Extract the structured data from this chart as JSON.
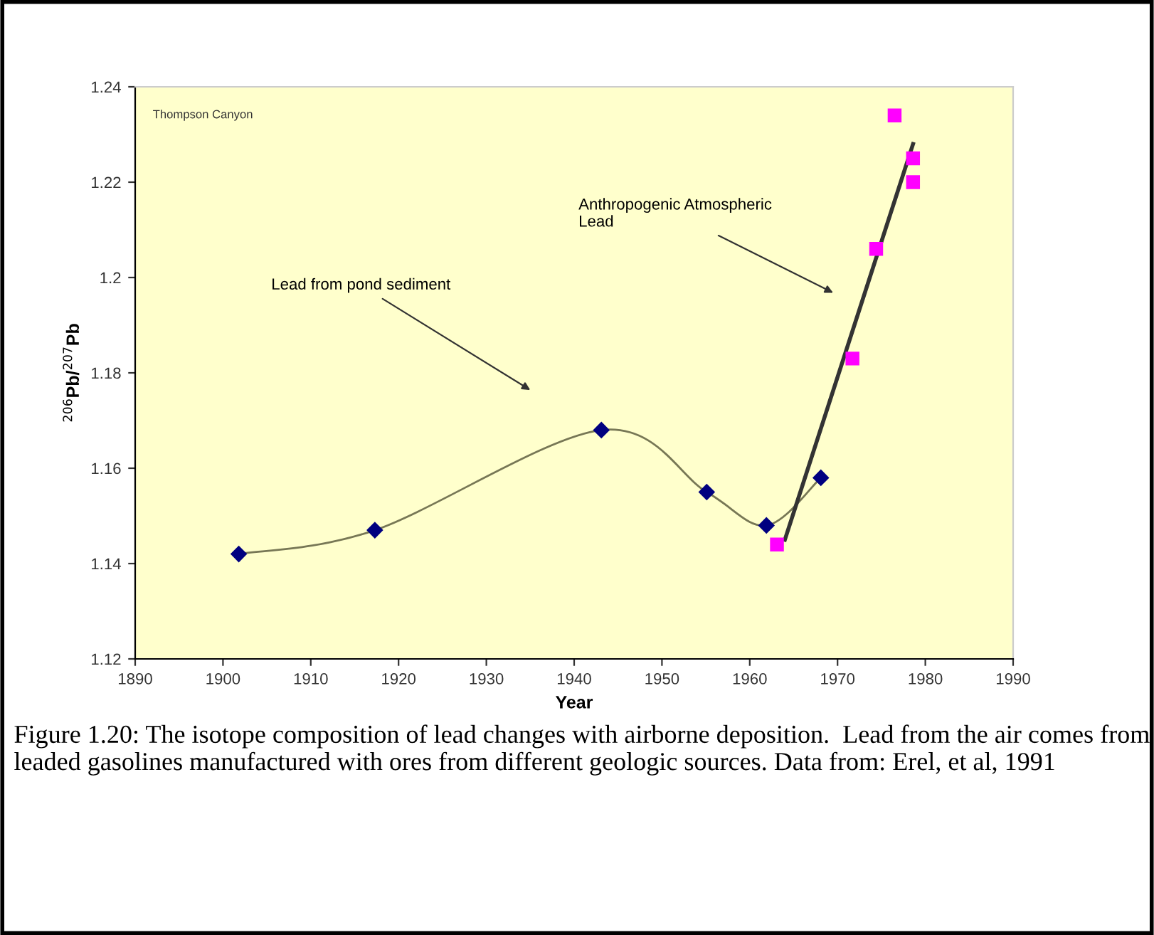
{
  "chart_data": {
    "type": "scatter",
    "xlabel": "Year",
    "ylabel": "$^{206}$Pb/$^{207}$Pb",
    "xlim": [
      1890,
      1990
    ],
    "xticks": [
      1890,
      1900,
      1910,
      1920,
      1930,
      1940,
      1950,
      1960,
      1970,
      1980,
      1990
    ],
    "ylim": [
      1.12,
      1.24
    ],
    "yticks": [
      1.12,
      1.14,
      1.16,
      1.18,
      1.2,
      1.22,
      1.24
    ],
    "grid": false,
    "legend": false,
    "series": [
      {
        "type": "line",
        "color": "#000080",
        "marker": "diamond",
        "x": [
          1901.8,
          1917.3,
          1943.1,
          1955.1,
          1961.9,
          1968.1
        ],
        "values": [
          1.142,
          1.147,
          1.168,
          1.155,
          1.148,
          1.158
        ]
      },
      {
        "type": "scatter",
        "color": "#ff00ff",
        "marker": "square",
        "x": [
          1963.1,
          1971.7,
          1974.4,
          1976.5,
          1978.6,
          1978.6
        ],
        "values": [
          1.144,
          1.183,
          1.206,
          1.234,
          1.225,
          1.22
        ]
      },
      {
        "type": "line",
        "color": "#333333",
        "marker": "none",
        "x": [
          1964.0,
          1978.6
        ],
        "values": [
          1.145,
          1.228
        ]
      }
    ],
    "annotations": [
      "Thompson Canyon",
      "Lead from pond sediment",
      "Anthropogenic Atmospheric\nLead",
      "Figure 1.20: The isotope composition of lead changes with airborne deposition.  Lead from the air comes from leaded gasolines manufactured with ores from different geologic sources. Data from: Erel, et al, 1991"
    ]
  }
}
